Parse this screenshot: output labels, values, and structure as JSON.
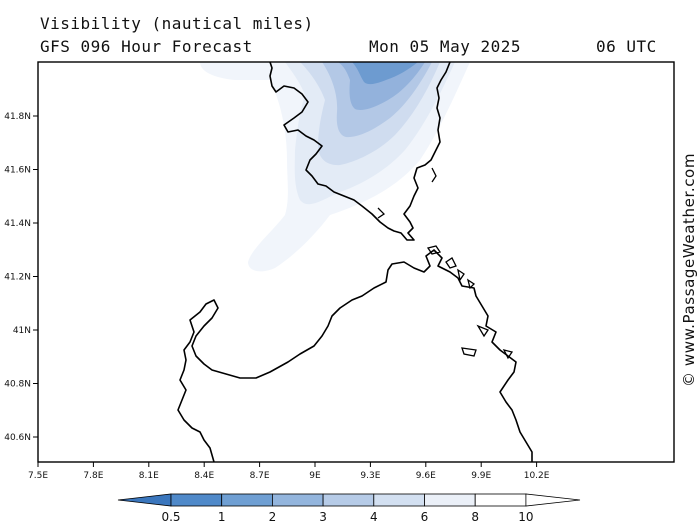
{
  "header": {
    "title": "Visibility (nautical miles)",
    "subtitle": "GFS 096 Hour Forecast",
    "date": "Mon 05 May 2025",
    "time": "06 UTC"
  },
  "watermark": "© www.PassageWeather.com",
  "map": {
    "lon_ticks": [
      "7.5E",
      "7.8E",
      "8.1E",
      "8.4E",
      "8.7E",
      "9E",
      "9.3E",
      "9.6E",
      "9.9E",
      "10.2E"
    ],
    "lat_ticks": [
      "41.8N",
      "41.6N",
      "41.4N",
      "41.2N",
      "41N",
      "40.8N",
      "40.6N"
    ],
    "coast_color": "#000000",
    "background_color": "#ffffff"
  },
  "legend": {
    "labels": [
      "0.5",
      "1",
      "2",
      "3",
      "4",
      "6",
      "8",
      "10"
    ],
    "colors": [
      "#3a76bd",
      "#4f89c9",
      "#6f9fd3",
      "#93b5dd",
      "#b6cbe7",
      "#d3e0f1",
      "#ebf0f8",
      "#ffffff"
    ]
  }
}
